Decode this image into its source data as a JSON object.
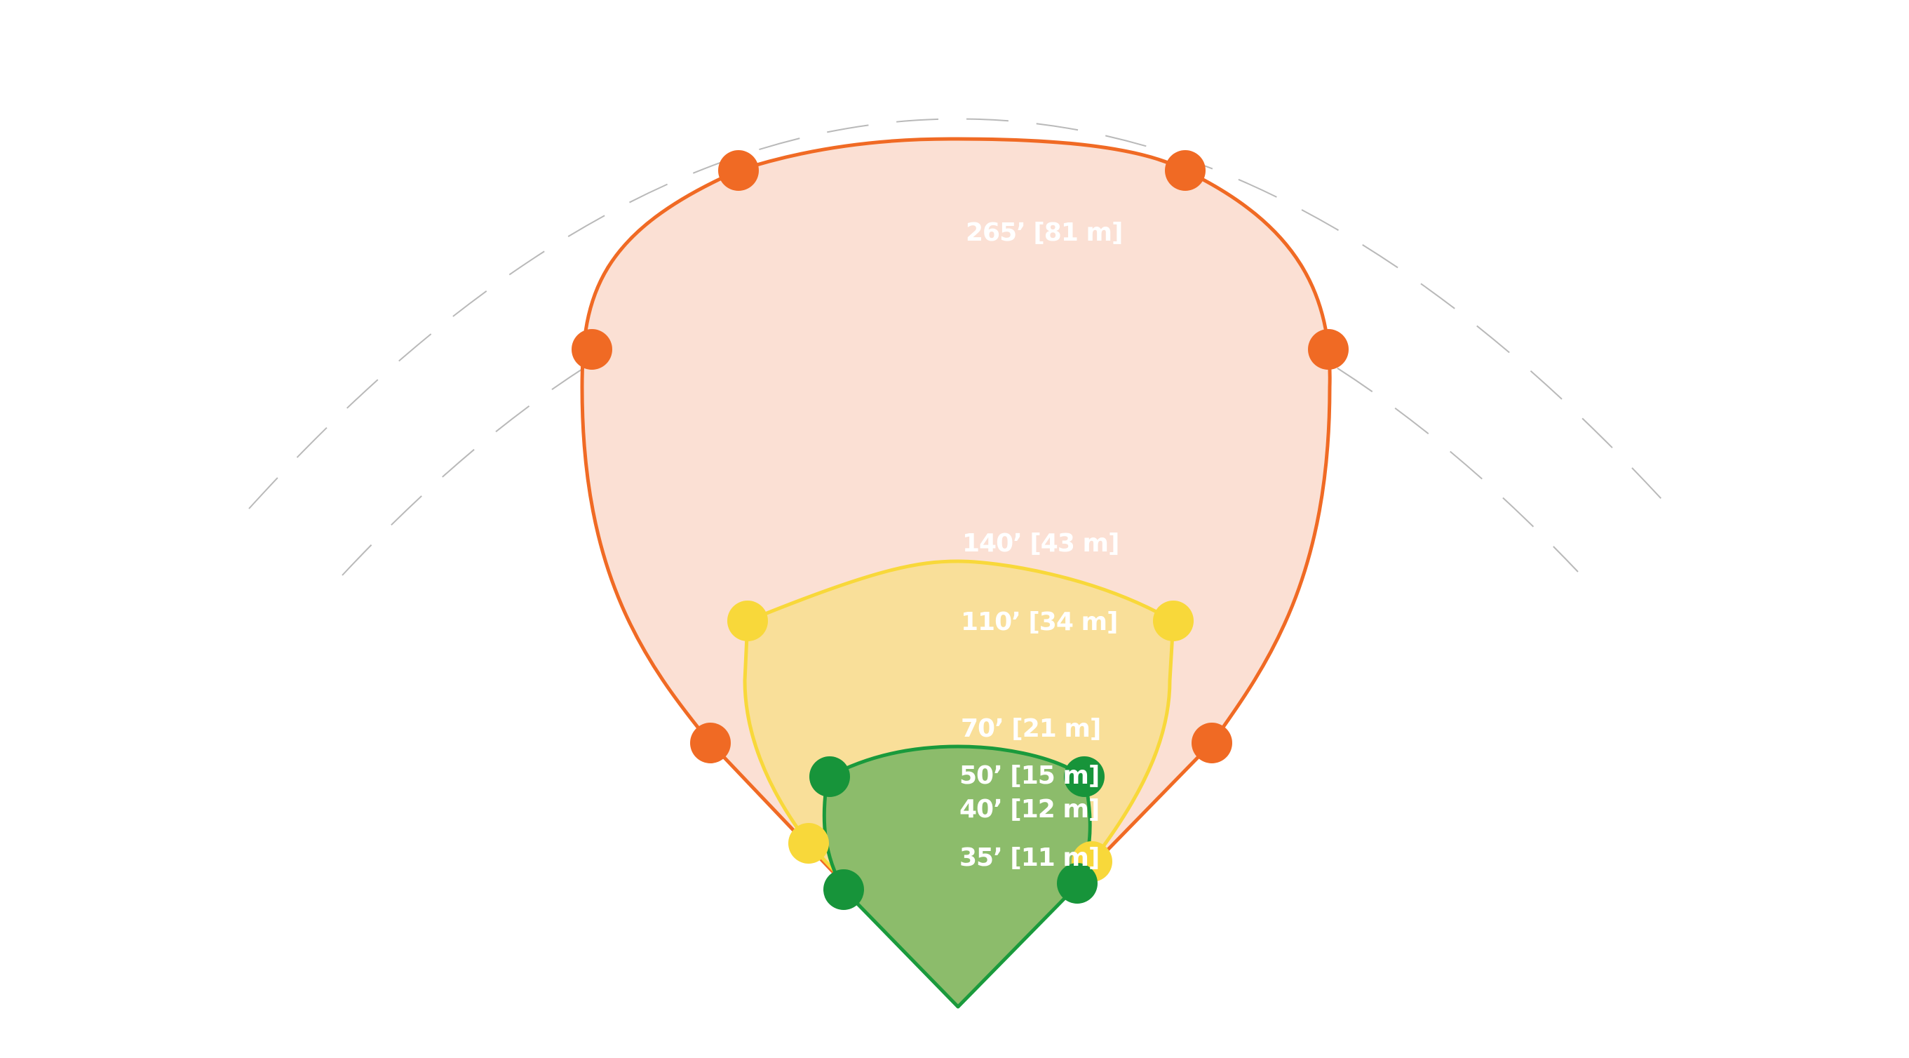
{
  "diagram": {
    "labels": [
      {
        "id": "265",
        "text": "265’ [81 m]"
      },
      {
        "id": "140",
        "text": "140’ [43 m]"
      },
      {
        "id": "110",
        "text": "110’ [34 m]"
      },
      {
        "id": "70",
        "text": "70’ [21 m]"
      },
      {
        "id": "50",
        "text": "50’ [15 m]"
      },
      {
        "id": "40",
        "text": "40’ [12 m]"
      },
      {
        "id": "35",
        "text": "35’ [11 m]"
      }
    ],
    "colors": {
      "outer_fill": "#fbe0d4",
      "outer_stroke": "#f06a24",
      "middle_fill": "#f9df99",
      "middle_stroke": "#f8d83a",
      "inner_fill": "#8cbc6b",
      "inner_stroke": "#1a9a3c",
      "inner_dot": "#17943a",
      "arc": "#b9b9b9",
      "label": "#ffffff"
    }
  }
}
